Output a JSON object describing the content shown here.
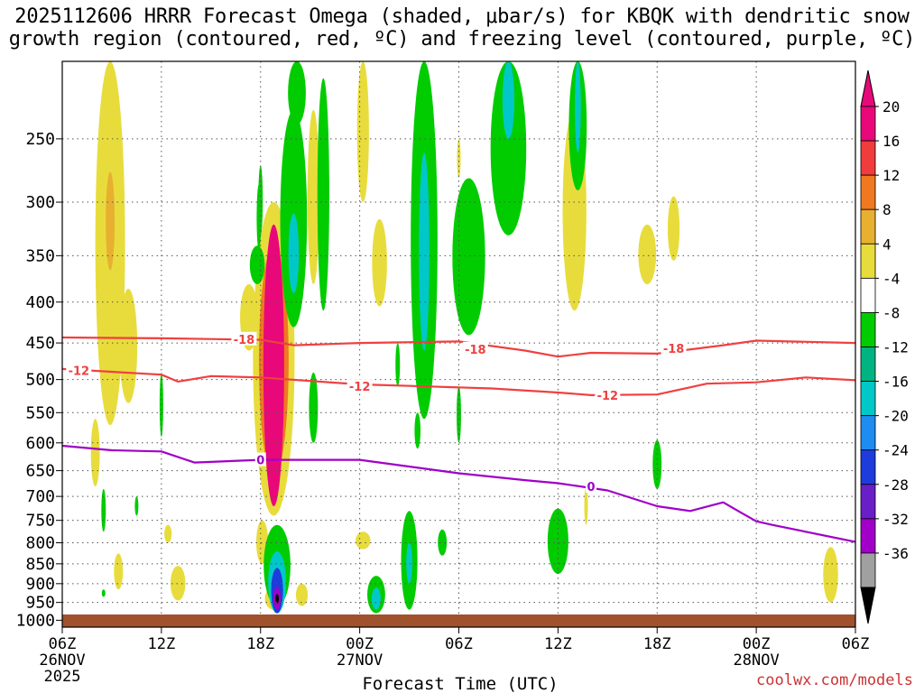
{
  "title": {
    "line1": "2025112606 HRRR Forecast Omega (shaded, μbar/s) for KBQK with dendritic snow",
    "line2": "growth region (contoured, red, ºC) and freezing level (contoured, purple, ºC)"
  },
  "credit": "coolwx.com/models",
  "chart_data": {
    "type": "heatmap",
    "xlabel": "Forecast Time (UTC)",
    "ylabel": "",
    "x_ticks": [
      {
        "hour": 0,
        "label": "06Z",
        "date": "26NOV",
        "year": "2025"
      },
      {
        "hour": 6,
        "label": "12Z"
      },
      {
        "hour": 12,
        "label": "18Z"
      },
      {
        "hour": 18,
        "label": "00Z",
        "date": "27NOV"
      },
      {
        "hour": 24,
        "label": "06Z"
      },
      {
        "hour": 30,
        "label": "12Z"
      },
      {
        "hour": 36,
        "label": "18Z"
      },
      {
        "hour": 42,
        "label": "00Z",
        "date": "28NOV"
      },
      {
        "hour": 48,
        "label": "06Z"
      }
    ],
    "xlim": [
      0,
      48
    ],
    "y_ticks": [
      "250",
      "300",
      "350",
      "400",
      "450",
      "500",
      "550",
      "600",
      "650",
      "700",
      "750",
      "800",
      "850",
      "900",
      "950",
      "1000"
    ],
    "ylim_hPa": [
      200,
      1020
    ],
    "y_scale": "log",
    "grid": true,
    "colorbar": {
      "placement": "right",
      "labels": [
        "20",
        "16",
        "12",
        "8",
        "4",
        "-4",
        "-8",
        "-12",
        "-16",
        "-20",
        "-24",
        "-28",
        "-32",
        "-36"
      ],
      "colors": [
        "#e8087a",
        "#f03c3c",
        "#f07820",
        "#e8b030",
        "#e8dc3c",
        "#ffffff",
        "#00cc00",
        "#00b482",
        "#00c8c8",
        "#1e8cf0",
        "#1e3cdc",
        "#6a1ec8",
        "#a000c8",
        "#a0a0a0"
      ],
      "top_arrow_color": "#e8087a",
      "bottom_arrow_color": "#000000"
    },
    "dgz_contours": [
      {
        "label": "-18",
        "color": "#f04040",
        "x": [
          0,
          6,
          12,
          14,
          18,
          24,
          28,
          30,
          32,
          36,
          40,
          42,
          48
        ],
        "y": [
          443,
          444,
          446,
          453,
          450,
          448,
          460,
          468,
          463,
          464,
          453,
          447,
          450
        ],
        "label_at": [
          [
            11,
            445
          ],
          [
            25,
            458
          ],
          [
            37,
            457
          ]
        ]
      },
      {
        "label": "-12",
        "color": "#f04040",
        "x": [
          0,
          6,
          7,
          9,
          12,
          18,
          22,
          26,
          30,
          32,
          36,
          39,
          42,
          45,
          48
        ],
        "y": [
          485,
          493,
          503,
          495,
          497,
          507,
          510,
          513,
          519,
          523,
          522,
          506,
          504,
          497,
          501
        ],
        "label_at": [
          [
            1,
            487
          ],
          [
            18,
            510
          ],
          [
            33,
            523
          ]
        ]
      }
    ],
    "freezing_level": {
      "label": "0",
      "color": "#a000c8",
      "x": [
        0,
        3,
        6,
        8,
        12,
        18,
        24,
        28,
        30,
        33,
        36,
        38,
        40,
        41,
        42,
        43,
        48
      ],
      "y": [
        605,
        613,
        615,
        635,
        630,
        630,
        655,
        668,
        674,
        688,
        720,
        730,
        712,
        732,
        752,
        760,
        798
      ],
      "label_at": [
        [
          12,
          630
        ],
        [
          32,
          680
        ]
      ]
    },
    "omega_regions": [
      {
        "x": 2.9,
        "p": 380,
        "w": 1.0,
        "h": 380,
        "v": 5
      },
      {
        "x": 2.9,
        "p": 320,
        "w": 0.3,
        "h": 90,
        "v": 10
      },
      {
        "x": 4.0,
        "p": 460,
        "w": 0.6,
        "h": 150,
        "v": 5
      },
      {
        "x": 2.0,
        "p": 620,
        "w": 0.3,
        "h": 120,
        "v": 5
      },
      {
        "x": 6.4,
        "p": 780,
        "w": 0.25,
        "h": 40,
        "v": 5
      },
      {
        "x": 3.4,
        "p": 870,
        "w": 0.3,
        "h": 90,
        "v": 5
      },
      {
        "x": 7.0,
        "p": 900,
        "w": 0.5,
        "h": 90,
        "v": 5
      },
      {
        "x": 11.3,
        "p": 420,
        "w": 0.6,
        "h": 80,
        "v": 5
      },
      {
        "x": 12.8,
        "p": 520,
        "w": 1.4,
        "h": 440,
        "v": 5
      },
      {
        "x": 12.8,
        "p": 500,
        "w": 1.0,
        "h": 320,
        "v": 13
      },
      {
        "x": 12.8,
        "p": 520,
        "w": 0.7,
        "h": 400,
        "v": 21
      },
      {
        "x": 12.1,
        "p": 800,
        "w": 0.4,
        "h": 100,
        "v": 5
      },
      {
        "x": 12.8,
        "p": 940,
        "w": 0.6,
        "h": 60,
        "v": 5
      },
      {
        "x": 14.5,
        "p": 930,
        "w": 0.4,
        "h": 60,
        "v": 5
      },
      {
        "x": 18.2,
        "p": 795,
        "w": 0.5,
        "h": 40,
        "v": 5
      },
      {
        "x": 18.2,
        "p": 250,
        "w": 0.4,
        "h": 100,
        "v": 5
      },
      {
        "x": 19.2,
        "p": 360,
        "w": 0.5,
        "h": 90,
        "v": 5
      },
      {
        "x": 15.2,
        "p": 305,
        "w": 0.4,
        "h": 150,
        "v": 5
      },
      {
        "x": 24.0,
        "p": 265,
        "w": 0.12,
        "h": 30,
        "v": 5
      },
      {
        "x": 31.0,
        "p": 320,
        "w": 0.8,
        "h": 180,
        "v": 5
      },
      {
        "x": 35.4,
        "p": 350,
        "w": 0.6,
        "h": 60,
        "v": 5
      },
      {
        "x": 37.0,
        "p": 325,
        "w": 0.4,
        "h": 60,
        "v": 5
      },
      {
        "x": 31.7,
        "p": 720,
        "w": 0.12,
        "h": 80,
        "v": 5
      },
      {
        "x": 46.5,
        "p": 880,
        "w": 0.5,
        "h": 140,
        "v": 5
      },
      {
        "x": 14.0,
        "p": 330,
        "w": 0.9,
        "h": 200,
        "v": -5
      },
      {
        "x": 14.0,
        "p": 350,
        "w": 0.35,
        "h": 80,
        "v": -13
      },
      {
        "x": 15.2,
        "p": 545,
        "w": 0.3,
        "h": 110,
        "v": -5
      },
      {
        "x": 14.2,
        "p": 180,
        "w": 0.6,
        "h": 120,
        "v": -5
      },
      {
        "x": 11.9,
        "p": 315,
        "w": 0.15,
        "h": 60,
        "v": -5
      },
      {
        "x": 11.8,
        "p": 360,
        "w": 0.5,
        "h": 40,
        "v": -5
      },
      {
        "x": 13.0,
        "p": 860,
        "w": 0.9,
        "h": 200,
        "v": -5
      },
      {
        "x": 13.0,
        "p": 900,
        "w": 0.6,
        "h": 160,
        "v": -13
      },
      {
        "x": 13.0,
        "p": 920,
        "w": 0.4,
        "h": 120,
        "v": -21
      },
      {
        "x": 13.0,
        "p": 940,
        "w": 0.25,
        "h": 60,
        "v": -29
      },
      {
        "x": 13.0,
        "p": 940,
        "w": 0.12,
        "h": 25,
        "v": -37
      },
      {
        "x": 21.9,
        "p": 350,
        "w": 0.9,
        "h": 420,
        "v": -5
      },
      {
        "x": 21.9,
        "p": 360,
        "w": 0.35,
        "h": 200,
        "v": -13
      },
      {
        "x": 24.6,
        "p": 360,
        "w": 1.1,
        "h": 160,
        "v": -5
      },
      {
        "x": 20.3,
        "p": 480,
        "w": 0.15,
        "h": 60,
        "v": -5
      },
      {
        "x": 21.5,
        "p": 580,
        "w": 0.2,
        "h": 60,
        "v": -5
      },
      {
        "x": 27.0,
        "p": 180,
        "w": 1.2,
        "h": 300,
        "v": -5
      },
      {
        "x": 27.0,
        "p": 210,
        "w": 0.4,
        "h": 80,
        "v": -13
      },
      {
        "x": 31.2,
        "p": 200,
        "w": 0.6,
        "h": 180,
        "v": -5
      },
      {
        "x": 31.2,
        "p": 230,
        "w": 0.2,
        "h": 60,
        "v": -13
      },
      {
        "x": 24.0,
        "p": 555,
        "w": 0.15,
        "h": 90,
        "v": -5
      },
      {
        "x": 19.0,
        "p": 930,
        "w": 0.6,
        "h": 100,
        "v": -5
      },
      {
        "x": 19.0,
        "p": 940,
        "w": 0.3,
        "h": 60,
        "v": -13
      },
      {
        "x": 21.0,
        "p": 850,
        "w": 0.55,
        "h": 240,
        "v": -5
      },
      {
        "x": 21.0,
        "p": 850,
        "w": 0.2,
        "h": 100,
        "v": -13
      },
      {
        "x": 23.0,
        "p": 800,
        "w": 0.3,
        "h": 60,
        "v": -5
      },
      {
        "x": 30.0,
        "p": 800,
        "w": 0.7,
        "h": 150,
        "v": -5
      },
      {
        "x": 36.0,
        "p": 640,
        "w": 0.3,
        "h": 90,
        "v": -5
      },
      {
        "x": 2.5,
        "p": 730,
        "w": 0.15,
        "h": 90,
        "v": -5
      },
      {
        "x": 2.5,
        "p": 925,
        "w": 0.12,
        "h": 20,
        "v": -5
      },
      {
        "x": 4.5,
        "p": 720,
        "w": 0.12,
        "h": 40,
        "v": -5
      },
      {
        "x": 6.0,
        "p": 540,
        "w": 0.12,
        "h": 100,
        "v": -5
      },
      {
        "x": 12.0,
        "p": 300,
        "w": 0.15,
        "h": 60,
        "v": -5
      },
      {
        "x": 15.8,
        "p": 310,
        "w": 0.4,
        "h": 200,
        "v": -5
      }
    ]
  }
}
